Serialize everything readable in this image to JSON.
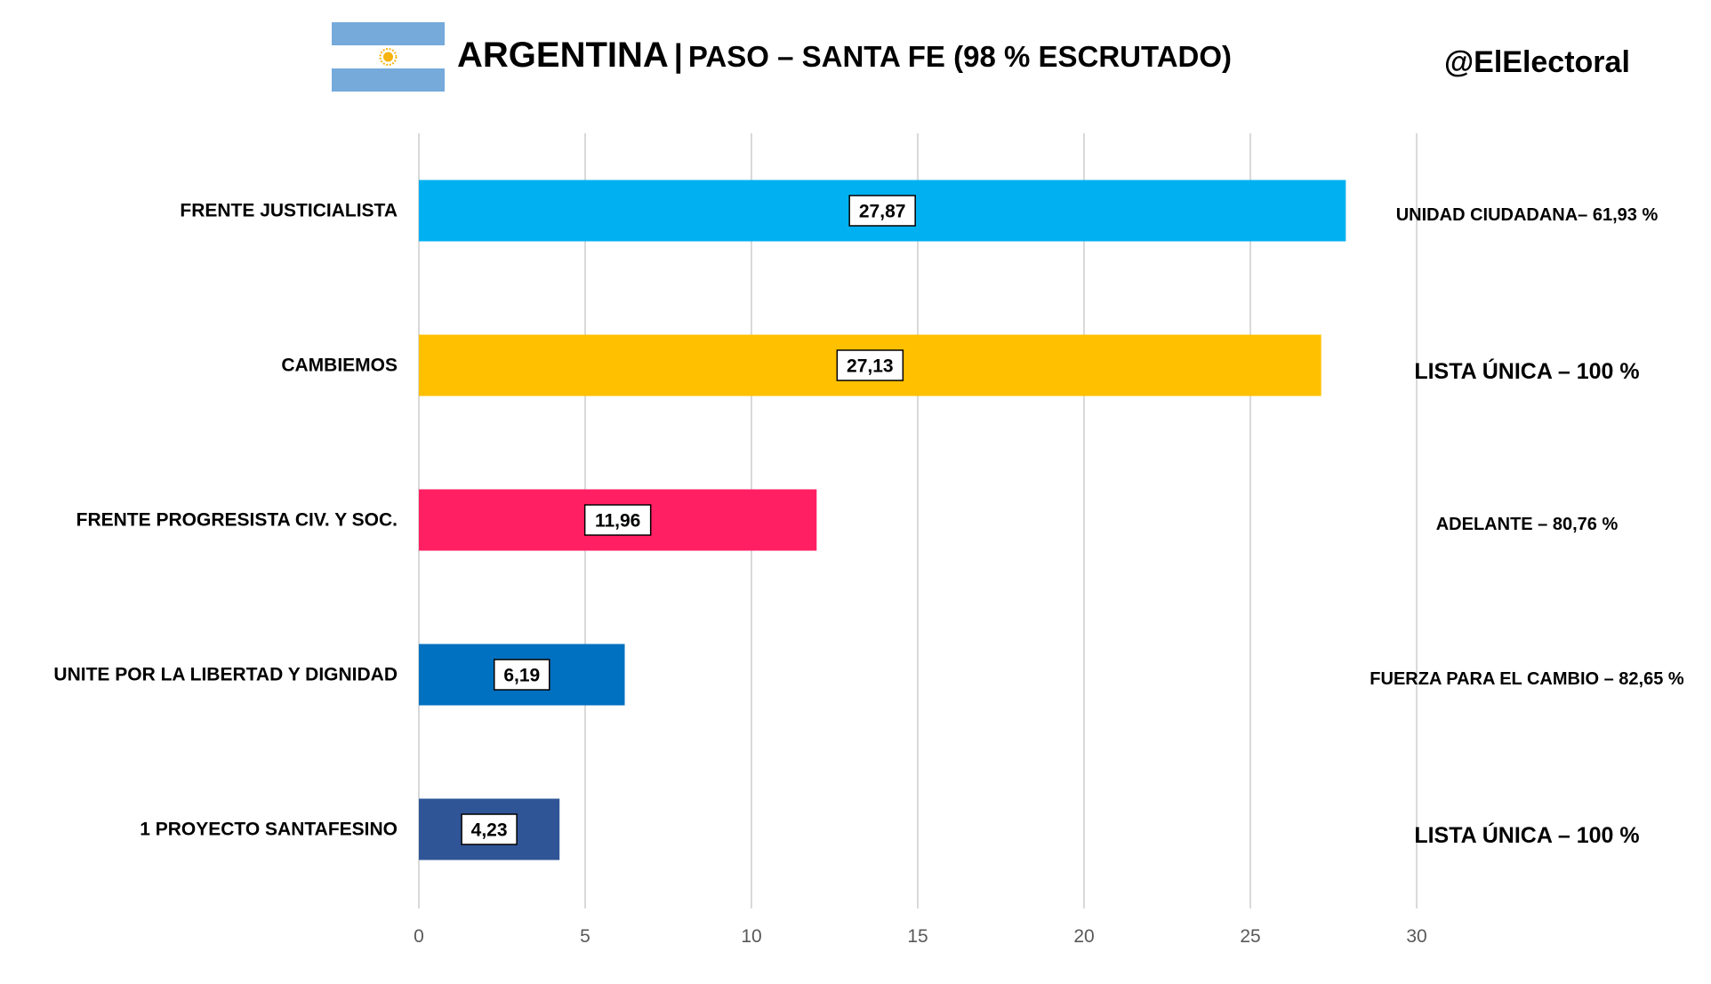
{
  "header": {
    "title_main": "ARGENTINA",
    "title_sep": "|",
    "title_sub": "PASO – SANTA FE (98 % ESCRUTADO)",
    "handle": "@ElElectoral",
    "flag_icon": "argentina-flag-icon"
  },
  "colors": {
    "flag_blue": "#75aadb",
    "flag_sun": "#f6b40e"
  },
  "chart_data": {
    "type": "bar",
    "orientation": "horizontal",
    "title": "ARGENTINA | PASO – SANTA FE (98 % ESCRUTADO)",
    "categories": [
      "FRENTE JUSTICIALISTA",
      "CAMBIEMOS",
      "FRENTE PROGRESISTA CIV. Y SOC.",
      "UNITE POR LA LIBERTAD Y DIGNIDAD",
      "1 PROYECTO SANTAFESINO"
    ],
    "values": [
      27.87,
      27.13,
      11.96,
      6.19,
      4.23
    ],
    "value_labels": [
      "27,87",
      "27,13",
      "11,96",
      "6,19",
      "4,23"
    ],
    "colors": [
      "#00b0f0",
      "#ffc000",
      "#ff1f62",
      "#0070c0",
      "#2f5597"
    ],
    "annotations": [
      "UNIDAD CIUDADANA– 61,93 %",
      "LISTA ÚNICA – 100 %",
      "ADELANTE – 80,76 %",
      "FUERZA PARA EL CAMBIO – 82,65 %",
      "LISTA ÚNICA – 100 %"
    ],
    "annotation_emphasis": [
      false,
      true,
      false,
      false,
      true
    ],
    "xlim": [
      0,
      30
    ],
    "xticks": [
      0,
      5,
      10,
      15,
      20,
      25,
      30
    ],
    "grid": true,
    "xlabel": "",
    "ylabel": ""
  }
}
